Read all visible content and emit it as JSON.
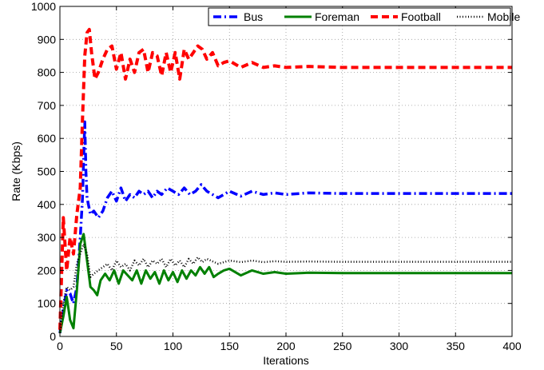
{
  "chart_data": {
    "type": "line",
    "title": "",
    "xlabel": "Iterations",
    "ylabel": "Rate (Kbps)",
    "xlim": [
      0,
      400
    ],
    "ylim": [
      0,
      1000
    ],
    "xticks": [
      0,
      50,
      100,
      150,
      200,
      250,
      300,
      350,
      400
    ],
    "yticks": [
      0,
      100,
      200,
      300,
      400,
      500,
      600,
      700,
      800,
      900,
      1000
    ],
    "grid": true,
    "legend_position": "top-right",
    "series": [
      {
        "name": "Bus",
        "color": "#0000ff",
        "dash": "dashdot",
        "points": [
          [
            0,
            10
          ],
          [
            3,
            80
          ],
          [
            6,
            140
          ],
          [
            9,
            130
          ],
          [
            12,
            100
          ],
          [
            15,
            150
          ],
          [
            18,
            300
          ],
          [
            20,
            420
          ],
          [
            21,
            540
          ],
          [
            22,
            650
          ],
          [
            23,
            500
          ],
          [
            24,
            420
          ],
          [
            27,
            370
          ],
          [
            30,
            380
          ],
          [
            34,
            360
          ],
          [
            38,
            380
          ],
          [
            42,
            420
          ],
          [
            46,
            440
          ],
          [
            50,
            410
          ],
          [
            54,
            450
          ],
          [
            58,
            410
          ],
          [
            62,
            430
          ],
          [
            66,
            420
          ],
          [
            70,
            440
          ],
          [
            74,
            430
          ],
          [
            78,
            440
          ],
          [
            82,
            420
          ],
          [
            86,
            440
          ],
          [
            90,
            430
          ],
          [
            95,
            450
          ],
          [
            100,
            440
          ],
          [
            105,
            430
          ],
          [
            110,
            450
          ],
          [
            115,
            430
          ],
          [
            120,
            440
          ],
          [
            125,
            460
          ],
          [
            130,
            440
          ],
          [
            140,
            420
          ],
          [
            150,
            440
          ],
          [
            160,
            425
          ],
          [
            170,
            440
          ],
          [
            180,
            430
          ],
          [
            190,
            435
          ],
          [
            200,
            430
          ],
          [
            220,
            435
          ],
          [
            250,
            433
          ],
          [
            300,
            433
          ],
          [
            350,
            433
          ],
          [
            400,
            433
          ]
        ]
      },
      {
        "name": "Foreman",
        "color": "#008000",
        "dash": "solid",
        "points": [
          [
            0,
            10
          ],
          [
            3,
            60
          ],
          [
            6,
            120
          ],
          [
            9,
            50
          ],
          [
            12,
            25
          ],
          [
            15,
            140
          ],
          [
            18,
            280
          ],
          [
            21,
            310
          ],
          [
            24,
            230
          ],
          [
            27,
            150
          ],
          [
            30,
            140
          ],
          [
            33,
            125
          ],
          [
            36,
            170
          ],
          [
            40,
            190
          ],
          [
            44,
            170
          ],
          [
            48,
            200
          ],
          [
            52,
            160
          ],
          [
            56,
            200
          ],
          [
            60,
            185
          ],
          [
            64,
            170
          ],
          [
            68,
            200
          ],
          [
            72,
            160
          ],
          [
            76,
            200
          ],
          [
            80,
            175
          ],
          [
            84,
            195
          ],
          [
            88,
            160
          ],
          [
            92,
            200
          ],
          [
            96,
            170
          ],
          [
            100,
            195
          ],
          [
            104,
            165
          ],
          [
            108,
            200
          ],
          [
            112,
            175
          ],
          [
            116,
            200
          ],
          [
            120,
            185
          ],
          [
            124,
            210
          ],
          [
            128,
            190
          ],
          [
            132,
            210
          ],
          [
            136,
            180
          ],
          [
            140,
            190
          ],
          [
            145,
            200
          ],
          [
            150,
            205
          ],
          [
            160,
            185
          ],
          [
            170,
            200
          ],
          [
            180,
            190
          ],
          [
            190,
            195
          ],
          [
            200,
            190
          ],
          [
            220,
            193
          ],
          [
            250,
            192
          ],
          [
            300,
            192
          ],
          [
            350,
            192
          ],
          [
            400,
            192
          ]
        ]
      },
      {
        "name": "Football",
        "color": "#ff0000",
        "dash": "dashed",
        "points": [
          [
            0,
            20
          ],
          [
            3,
            360
          ],
          [
            6,
            200
          ],
          [
            9,
            300
          ],
          [
            12,
            250
          ],
          [
            15,
            370
          ],
          [
            18,
            450
          ],
          [
            20,
            660
          ],
          [
            22,
            850
          ],
          [
            24,
            920
          ],
          [
            26,
            930
          ],
          [
            28,
            860
          ],
          [
            31,
            780
          ],
          [
            34,
            800
          ],
          [
            38,
            840
          ],
          [
            42,
            870
          ],
          [
            46,
            880
          ],
          [
            50,
            810
          ],
          [
            54,
            860
          ],
          [
            58,
            780
          ],
          [
            62,
            840
          ],
          [
            66,
            800
          ],
          [
            70,
            860
          ],
          [
            74,
            870
          ],
          [
            78,
            800
          ],
          [
            82,
            860
          ],
          [
            86,
            850
          ],
          [
            90,
            790
          ],
          [
            94,
            860
          ],
          [
            98,
            800
          ],
          [
            102,
            860
          ],
          [
            106,
            780
          ],
          [
            110,
            870
          ],
          [
            114,
            840
          ],
          [
            118,
            860
          ],
          [
            122,
            880
          ],
          [
            126,
            870
          ],
          [
            130,
            840
          ],
          [
            135,
            860
          ],
          [
            140,
            820
          ],
          [
            145,
            830
          ],
          [
            150,
            835
          ],
          [
            160,
            815
          ],
          [
            170,
            830
          ],
          [
            180,
            815
          ],
          [
            190,
            820
          ],
          [
            200,
            815
          ],
          [
            220,
            818
          ],
          [
            250,
            815
          ],
          [
            300,
            815
          ],
          [
            350,
            815
          ],
          [
            400,
            815
          ]
        ]
      },
      {
        "name": "Mobile",
        "color": "#000000",
        "dash": "dotted",
        "points": [
          [
            0,
            10
          ],
          [
            3,
            100
          ],
          [
            6,
            150
          ],
          [
            9,
            140
          ],
          [
            12,
            150
          ],
          [
            15,
            220
          ],
          [
            18,
            250
          ],
          [
            21,
            280
          ],
          [
            24,
            250
          ],
          [
            27,
            180
          ],
          [
            30,
            190
          ],
          [
            34,
            200
          ],
          [
            38,
            210
          ],
          [
            42,
            220
          ],
          [
            46,
            200
          ],
          [
            50,
            230
          ],
          [
            54,
            210
          ],
          [
            58,
            220
          ],
          [
            62,
            200
          ],
          [
            66,
            230
          ],
          [
            70,
            215
          ],
          [
            74,
            235
          ],
          [
            78,
            210
          ],
          [
            82,
            230
          ],
          [
            86,
            220
          ],
          [
            90,
            235
          ],
          [
            94,
            210
          ],
          [
            98,
            235
          ],
          [
            102,
            215
          ],
          [
            106,
            230
          ],
          [
            110,
            210
          ],
          [
            114,
            235
          ],
          [
            118,
            220
          ],
          [
            122,
            240
          ],
          [
            126,
            225
          ],
          [
            130,
            235
          ],
          [
            140,
            220
          ],
          [
            150,
            230
          ],
          [
            160,
            225
          ],
          [
            170,
            230
          ],
          [
            180,
            225
          ],
          [
            190,
            228
          ],
          [
            200,
            226
          ],
          [
            220,
            227
          ],
          [
            250,
            226
          ],
          [
            300,
            226
          ],
          [
            350,
            226
          ],
          [
            400,
            226
          ]
        ]
      }
    ]
  }
}
